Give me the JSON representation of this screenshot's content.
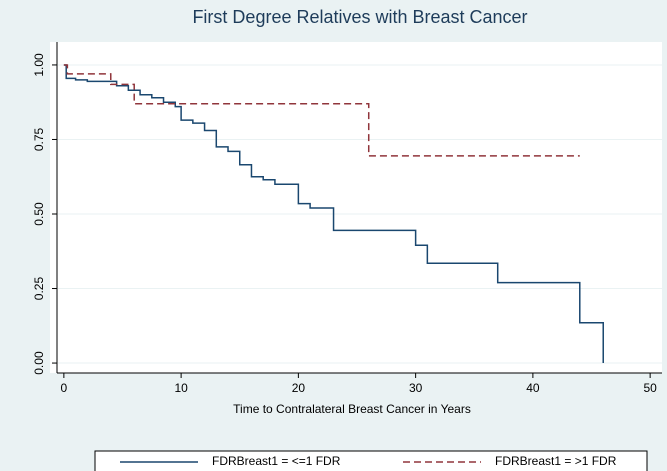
{
  "chart_data": {
    "type": "step-line",
    "title": "First Degree Relatives with Breast Cancer",
    "x_label": "Time to Contralateral Breast Cancer in Years",
    "xlim": [
      -0.5,
      50.5
    ],
    "xticks": [
      0,
      10,
      20,
      30,
      40,
      50
    ],
    "ylim": [
      -0.03,
      1.03
    ],
    "yticks": [
      {
        "value": 0,
        "label": "0.00"
      },
      0.25,
      {
        "value": 0.5,
        "label": "0.50"
      },
      0.75,
      {
        "value": 1,
        "label": "1.00"
      }
    ],
    "grid": true,
    "legend": "bottom",
    "series": [
      {
        "name": "FDRBreast1 = <=1 FDR",
        "color": "#1a476f",
        "dash": "none",
        "x": [
          0,
          0.2,
          1,
          2,
          4.5,
          5.5,
          6.5,
          7.5,
          8.5,
          9.5,
          10,
          11,
          12,
          13,
          14,
          15,
          16,
          17,
          18,
          20,
          21,
          23,
          30,
          31,
          37,
          44,
          46
        ],
        "values": [
          1,
          0.955,
          0.95,
          0.945,
          0.93,
          0.915,
          0.9,
          0.89,
          0.875,
          0.86,
          0.815,
          0.805,
          0.78,
          0.725,
          0.71,
          0.665,
          0.625,
          0.615,
          0.6,
          0.535,
          0.52,
          0.445,
          0.395,
          0.335,
          0.27,
          0.135,
          0
        ]
      },
      {
        "name": "FDRBreast1 = >1 FDR",
        "color": "#90353b",
        "dash": "7 4",
        "x": [
          0,
          0.3,
          4,
          6,
          26,
          44
        ],
        "values": [
          1,
          0.97,
          0.935,
          0.87,
          0.695,
          0.695
        ]
      }
    ]
  }
}
